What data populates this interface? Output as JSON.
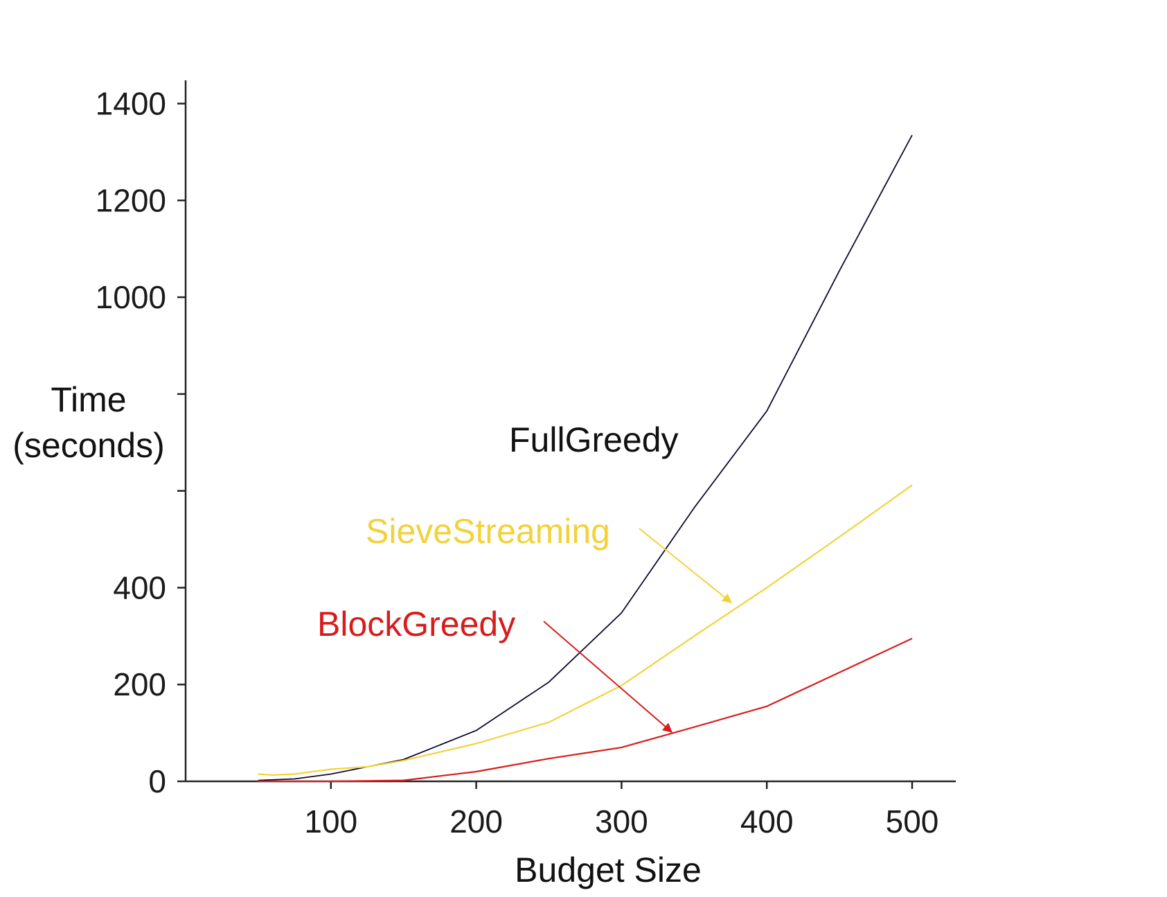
{
  "chart_data": {
    "type": "line",
    "title": "",
    "xlabel": "Budget Size",
    "ylabel_lines": [
      "Time",
      "(seconds)"
    ],
    "xlim": [
      0,
      530
    ],
    "ylim": [
      0,
      1400
    ],
    "x_ticks": [
      100,
      200,
      300,
      400,
      500
    ],
    "y_ticks": [
      0,
      200,
      400,
      600,
      800,
      1000,
      1200,
      1400
    ],
    "y_tick_labels": [
      "0",
      "200",
      "400",
      "",
      "",
      "1000",
      "1200",
      "1400"
    ],
    "grid": false,
    "series": [
      {
        "name": "FullGreedy",
        "color": "#0b0b2e",
        "x": [
          50,
          75,
          100,
          150,
          200,
          250,
          300,
          350,
          400,
          450,
          500
        ],
        "y": [
          2,
          5,
          15,
          45,
          105,
          205,
          348,
          565,
          765,
          1055,
          1335
        ]
      },
      {
        "name": "SieveStreaming",
        "color": "#f2d23a",
        "x": [
          50,
          60,
          75,
          100,
          125,
          150,
          200,
          250,
          300,
          350,
          400,
          450,
          500
        ],
        "y": [
          15,
          13,
          15,
          25,
          30,
          43,
          78,
          122,
          198,
          300,
          400,
          505,
          612
        ]
      },
      {
        "name": "BlockGreedy",
        "color": "#d81c1c",
        "x": [
          50,
          100,
          150,
          200,
          250,
          300,
          350,
          400,
          450,
          500
        ],
        "y": [
          0,
          0,
          2,
          20,
          47,
          70,
          112,
          155,
          225,
          295
        ]
      }
    ],
    "annotations": [
      {
        "text": "FullGreedy",
        "color": "#111111",
        "has_arrow": false
      },
      {
        "text": "SieveStreaming",
        "color": "#f2d23a",
        "has_arrow": true
      },
      {
        "text": "BlockGreedy",
        "color": "#d81c1c",
        "has_arrow": true
      }
    ]
  }
}
